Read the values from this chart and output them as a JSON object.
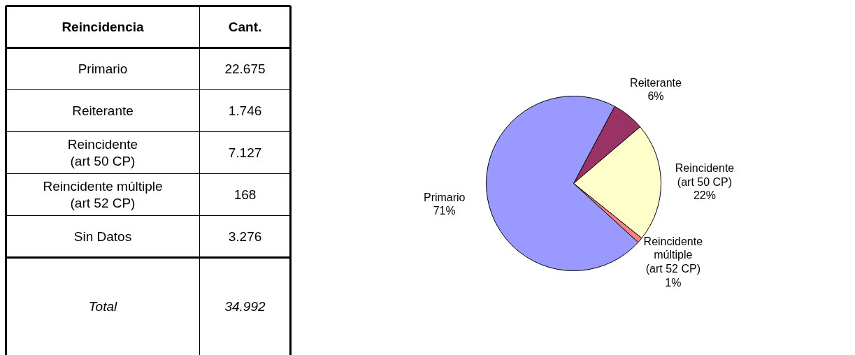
{
  "chart_data": [
    {
      "type": "other",
      "annotations": [
        "Reincidencia",
        "Cant.",
        "Primario",
        "22.675",
        "Reiterante",
        "1.746",
        "Reincidente\n(art 50 CP)",
        "7.127",
        "Reincidente múltiple\n(art 52 CP)",
        "168",
        "Sin Datos",
        "3.276",
        "Total",
        "34.992"
      ]
    },
    {
      "type": "pie",
      "categories": [
        "Reiterante",
        "Reincidente\n(art 50 CP)",
        "Reincidente\nmúltiple\n(art 52 CP)",
        "Primario"
      ],
      "values": [
        6,
        22,
        1,
        71
      ],
      "colors": [
        "#993366",
        "#ffffcc",
        "#ff8080",
        "#9999ff"
      ],
      "value_labels": [
        "6%",
        "22%",
        "1%",
        "71%"
      ]
    }
  ]
}
